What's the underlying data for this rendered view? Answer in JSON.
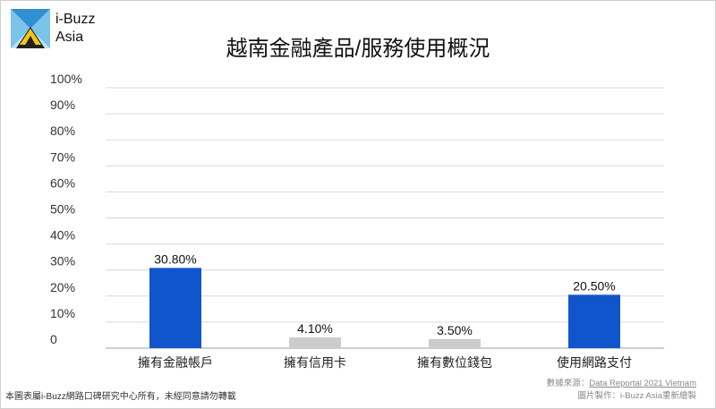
{
  "brand": {
    "name_line1": "i-Buzz",
    "name_line2": "Asia"
  },
  "colors": {
    "blue": "#1155cc",
    "gray": "#cccccc",
    "grid": "#d9d9d9",
    "axis": "#9e9e9e"
  },
  "chart_data": {
    "type": "bar",
    "title": "越南金融產品/服務使用概況",
    "categories": [
      "擁有金融帳戶",
      "擁有信用卡",
      "擁有數位錢包",
      "使用網路支付"
    ],
    "values": [
      30.8,
      4.1,
      3.5,
      20.5
    ],
    "value_labels": [
      "30.80%",
      "4.10%",
      "3.50%",
      "20.50%"
    ],
    "bar_colors": [
      "#1155cc",
      "#cccccc",
      "#cccccc",
      "#1155cc"
    ],
    "ylim": [
      0,
      100
    ],
    "yticks": [
      0,
      10,
      20,
      30,
      40,
      50,
      60,
      70,
      80,
      90,
      100
    ],
    "ytick_labels": [
      "0",
      "10%",
      "20%",
      "30%",
      "40%",
      "50%",
      "60%",
      "70%",
      "80%",
      "90%",
      "100%"
    ],
    "grid": true,
    "xlabel": "",
    "ylabel": ""
  },
  "footer": {
    "disclaimer": "本圖表屬i-Buzz網路口碑研究中心所有，未經同意請勿轉載",
    "source_prefix": "數據來源：",
    "source_link": "Data Reportal 2021 Vietnam",
    "made_by": "圖片製作：i-Buzz Asia重新繪製"
  }
}
